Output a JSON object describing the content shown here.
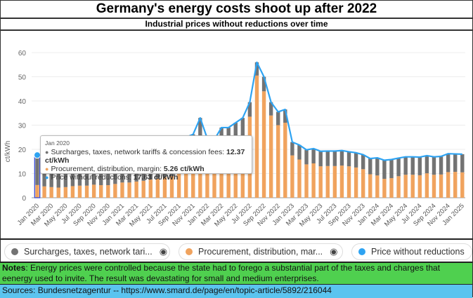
{
  "title": "Germany's energy costs shoot up after 2022",
  "subtitle": "Industrial prices without reductions over time",
  "colors": {
    "surcharges": "#737373",
    "procurement": "#f0a35e",
    "price": "#2ea3f2"
  },
  "chart_data": {
    "type": "bar",
    "stacked": true,
    "ylabel": "ct/kWh",
    "ylim": [
      0,
      60
    ],
    "yticks": [
      "0",
      "10",
      "20",
      "30",
      "40",
      "50",
      "60"
    ],
    "ytick_values": [
      0,
      10,
      20,
      30,
      40,
      50,
      60
    ],
    "grid": true,
    "x_tick_labels": [
      "Jan 2020",
      "Mar 2020",
      "May 2020",
      "Jul 2020",
      "Sep 2020",
      "Nov 2020",
      "Jan 2021",
      "Mar 2021",
      "May 2021",
      "Jul 2021",
      "Sep 2021",
      "Nov 2021",
      "Jan 2022",
      "Mar 2022",
      "May 2022",
      "Jul 2022",
      "Sep 2022",
      "Nov 2022",
      "Jan 2023",
      "Mar 2023",
      "May 2023",
      "Jul 2023",
      "Sep 2023",
      "Nov 2023",
      "Jan 2024",
      "Mar 2024",
      "May 2024",
      "Jul 2024",
      "Sep 2024",
      "Nov 2024",
      "Jan 2025"
    ],
    "months_count": 61,
    "series": [
      {
        "name": "Surcharges, taxes, network tariffs & concession fees",
        "legend_label": "Surcharges, taxes, network tari...",
        "type": "bar",
        "values": [
          12.37,
          12.6,
          12.6,
          12.6,
          12.5,
          12.4,
          12.4,
          12.5,
          12.4,
          12.5,
          12.5,
          12.3,
          12.4,
          12.5,
          12.5,
          12.5,
          12.5,
          12.6,
          12.5,
          12.5,
          12.5,
          12.5,
          12.2,
          12.0,
          8.5,
          8.5,
          8.0,
          7.5,
          8.0,
          7.5,
          6.0,
          5.5,
          6.0,
          5.5,
          5.5,
          5.5,
          5.5,
          6.0,
          6.0,
          6.1,
          6.2,
          6.2,
          6.2,
          6.2,
          6.0,
          6.1,
          6.0,
          6.5,
          7.3,
          7.7,
          7.7,
          7.5,
          7.4,
          7.4,
          7.5,
          7.3,
          7.4,
          7.5,
          7.6,
          7.4,
          7.5
        ]
      },
      {
        "name": "Procurement, distribution, margin",
        "legend_label": "Procurement, distribution, mar...",
        "type": "bar",
        "values": [
          5.26,
          4.7,
          4.4,
          4.2,
          4.4,
          4.8,
          5.0,
          5.0,
          5.4,
          5.2,
          5.2,
          5.7,
          6.3,
          6.3,
          6.7,
          7.0,
          7.5,
          7.9,
          8.5,
          9.0,
          10.5,
          12.5,
          14.0,
          21.0,
          16.0,
          15.5,
          21.0,
          21.5,
          23.0,
          25.5,
          33.5,
          50.5,
          44.0,
          34.0,
          30.0,
          31.0,
          17.5,
          15.8,
          13.8,
          14.2,
          13.0,
          13.1,
          13.1,
          13.3,
          13.0,
          12.5,
          11.8,
          9.7,
          9.2,
          7.8,
          8.1,
          8.9,
          9.5,
          9.5,
          9.3,
          10.1,
          9.5,
          9.6,
          10.6,
          10.7,
          10.5
        ]
      },
      {
        "name": "Price without reductions",
        "legend_label": "Price without reductions",
        "type": "line",
        "values": [
          17.63,
          17.3,
          17.0,
          16.8,
          16.9,
          17.2,
          17.4,
          17.5,
          17.8,
          17.7,
          17.7,
          18.0,
          18.7,
          18.8,
          19.2,
          19.5,
          20.0,
          20.5,
          21.0,
          21.5,
          23.0,
          25.0,
          26.2,
          33.0,
          24.5,
          24.0,
          29.0,
          29.0,
          31.0,
          33.0,
          39.5,
          56.0,
          50.0,
          39.5,
          35.5,
          36.5,
          23.0,
          21.8,
          19.8,
          20.3,
          19.2,
          19.3,
          19.3,
          19.5,
          19.0,
          18.6,
          17.8,
          16.2,
          16.5,
          15.5,
          15.8,
          16.4,
          16.9,
          16.9,
          16.8,
          17.4,
          16.9,
          17.1,
          18.2,
          18.1,
          18.0
        ]
      }
    ],
    "tooltip": {
      "header": "Jan 2020",
      "rows": [
        {
          "label": "Surcharges, taxes, network tariffs & concession fees: ",
          "value": "12.37 ct/kWh"
        },
        {
          "label": "Procurement, distribution, margin: ",
          "value": "5.26 ct/kWh"
        },
        {
          "label": "Price without reductions: ",
          "value": "17.63 ct/kWh"
        }
      ]
    }
  },
  "notes": {
    "label": "Notes",
    "text": ": Energy prices were controlled because the state had to forego a substantial part of the taxes and charges that eenergy used to invite. The result was devastating for small and medium enterprises."
  },
  "sources": {
    "text": "Sources:  Bundesnetzagentur -- https://www.smard.de/page/en/topic-article/5892/216044"
  },
  "icons": {
    "visibility": "eye-icon"
  }
}
